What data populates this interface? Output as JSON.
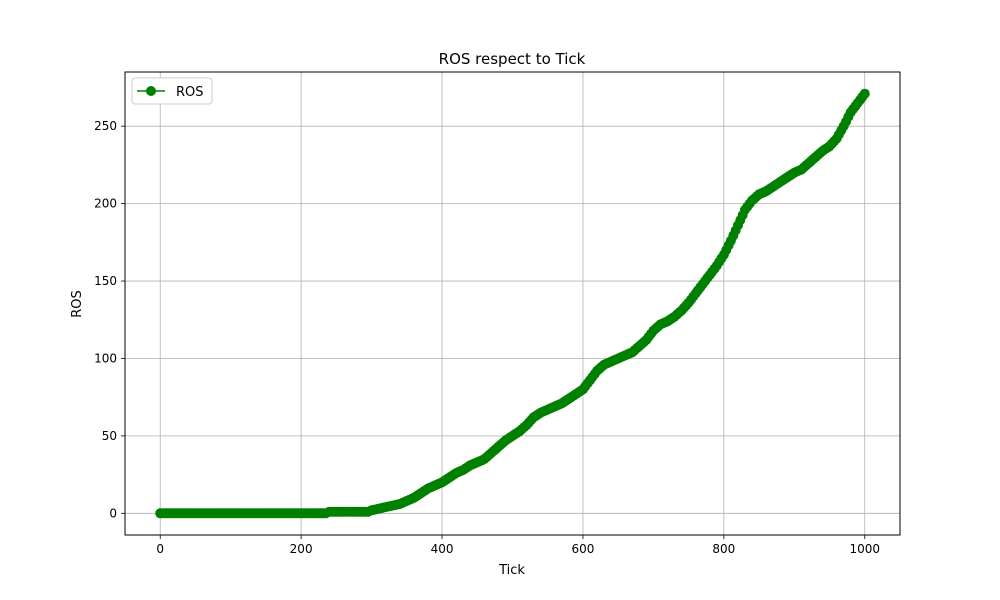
{
  "chart_data": {
    "type": "line",
    "title": "ROS respect to Tick",
    "xlabel": "Tick",
    "ylabel": "ROS",
    "xlim": [
      -50,
      1050
    ],
    "ylim": [
      -14,
      285
    ],
    "xticks": [
      0,
      200,
      400,
      600,
      800,
      1000
    ],
    "yticks": [
      0,
      50,
      100,
      150,
      200,
      250
    ],
    "grid": true,
    "legend_position": "top-left",
    "series": [
      {
        "name": "ROS",
        "color": "#008000",
        "marker": "circle",
        "x": [
          0,
          20,
          40,
          60,
          80,
          100,
          120,
          140,
          160,
          180,
          200,
          220,
          235,
          240,
          260,
          280,
          295,
          300,
          310,
          320,
          330,
          340,
          350,
          360,
          370,
          380,
          390,
          400,
          410,
          420,
          430,
          440,
          450,
          460,
          470,
          480,
          490,
          500,
          510,
          520,
          530,
          540,
          550,
          560,
          570,
          580,
          590,
          600,
          610,
          620,
          630,
          640,
          650,
          660,
          670,
          680,
          690,
          700,
          710,
          720,
          730,
          740,
          750,
          760,
          770,
          780,
          790,
          800,
          810,
          820,
          830,
          840,
          850,
          860,
          870,
          880,
          890,
          900,
          910,
          920,
          930,
          940,
          950,
          960,
          970,
          980,
          990,
          1000
        ],
        "y": [
          0,
          0,
          0,
          0,
          0,
          0,
          0,
          0,
          0,
          0,
          0,
          0,
          0,
          1,
          1,
          1,
          1,
          2,
          3,
          4,
          5,
          6,
          8,
          10,
          13,
          16,
          18,
          20,
          23,
          26,
          28,
          31,
          33,
          35,
          39,
          43,
          47,
          50,
          53,
          57,
          62,
          65,
          67,
          69,
          71,
          74,
          77,
          80,
          86,
          92,
          96,
          98,
          100,
          102,
          104,
          108,
          112,
          118,
          122,
          124,
          127,
          131,
          136,
          142,
          148,
          154,
          160,
          167,
          176,
          186,
          196,
          202,
          206,
          208,
          211,
          214,
          217,
          220,
          222,
          226,
          230,
          234,
          237,
          242,
          250,
          259,
          265,
          271
        ]
      }
    ],
    "legend": [
      "ROS"
    ]
  }
}
